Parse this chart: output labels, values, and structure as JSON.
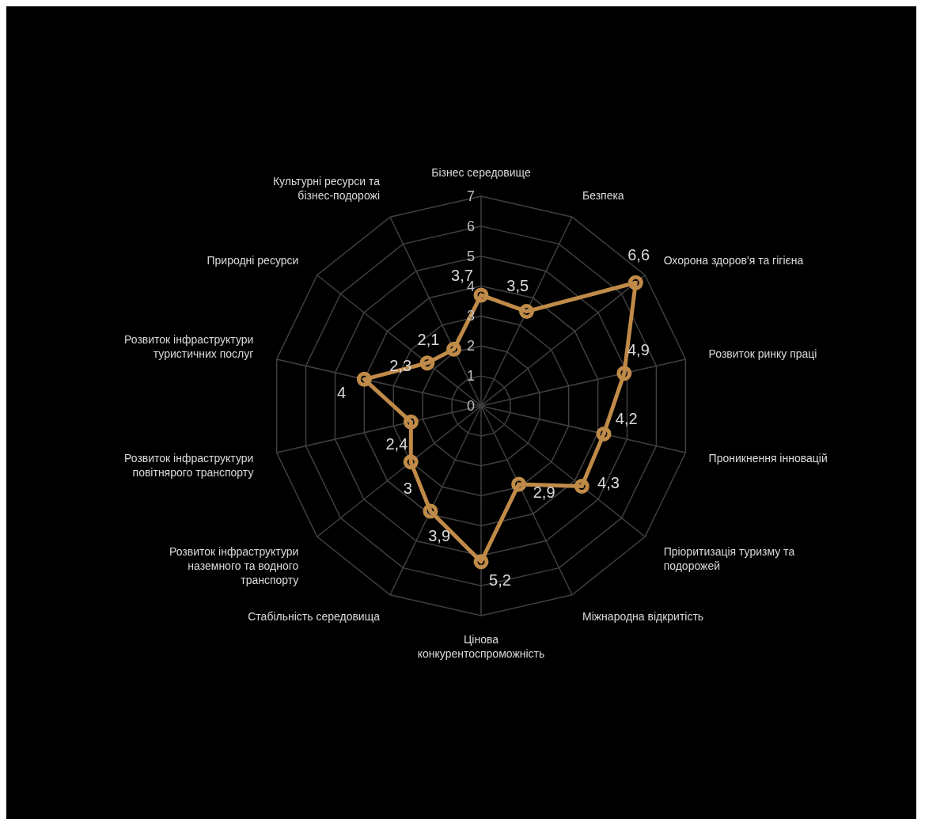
{
  "chart_data": {
    "type": "radar",
    "categories": [
      "Бізнес середовище",
      "Безпека",
      "Охорона здоров'я та гігієна",
      "Розвиток ринку праці",
      "Проникнення інновацій",
      "Пріоритизація туризму та подорожей",
      "Міжнародна відкритість",
      "Цінова конкурентоспроможність",
      "Стабільність середовища",
      "Розвиток інфраструктури наземного та водного транспорту",
      "Розвиток інфраструктури повітнярого транспорту",
      "Розвиток інфраструктури туристичних послуг",
      "Природні ресурси",
      "Культурні ресурси та бізнес-подорожі"
    ],
    "series": [
      {
        "color": "#c08a48",
        "values": [
          3.7,
          3.5,
          6.6,
          4.9,
          4.2,
          4.3,
          2.9,
          5.2,
          3.9,
          3,
          2.4,
          4,
          2.3,
          2.1
        ],
        "value_labels": [
          "3,7",
          "3,5",
          "6,6",
          "4,9",
          "4,2",
          "4,3",
          "2,9",
          "5,2",
          "3,9",
          "3",
          "2,4",
          "4",
          "2,3",
          "2,1"
        ]
      }
    ],
    "ylim": [
      0,
      7
    ],
    "yticks": [
      0,
      1,
      2,
      3,
      4,
      5,
      6,
      7
    ],
    "grid": true,
    "marker": "circle",
    "line_style": "solid",
    "legend": false
  }
}
